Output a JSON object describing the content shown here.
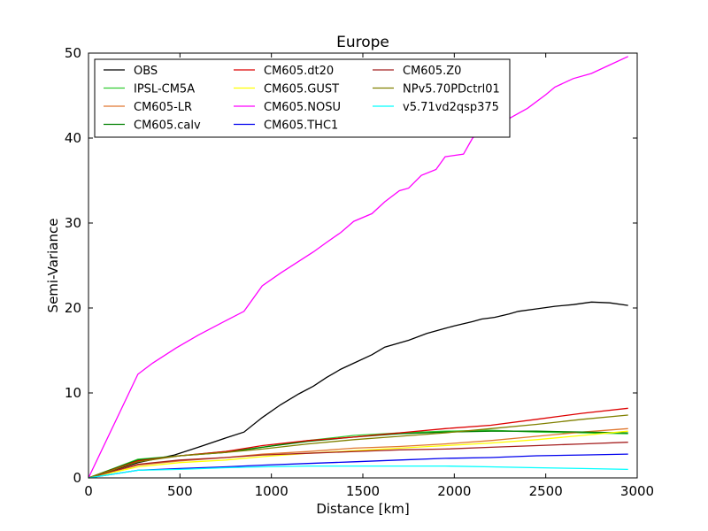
{
  "chart_data": {
    "type": "line",
    "title": "Europe",
    "xlabel": "Distance [km]",
    "ylabel": "Semi-Variance",
    "xlim": [
      0,
      3000
    ],
    "ylim": [
      0,
      50
    ],
    "xticks": [
      0,
      500,
      1000,
      1500,
      2000,
      2500,
      3000
    ],
    "yticks": [
      0,
      10,
      20,
      30,
      40,
      50
    ],
    "grid": false,
    "legend": {
      "placement": "top-left",
      "columns": 3
    },
    "series": [
      {
        "name": "OBS",
        "color": "#000000",
        "x": [
          0,
          270,
          470,
          600,
          750,
          850,
          950,
          1050,
          1150,
          1230,
          1300,
          1380,
          1450,
          1550,
          1620,
          1750,
          1850,
          1950,
          2000,
          2100,
          2150,
          2220,
          2300,
          2350,
          2450,
          2550,
          2650,
          2750,
          2850,
          2950
        ],
        "y": [
          0,
          1.8,
          2.7,
          3.6,
          4.7,
          5.4,
          7.1,
          8.6,
          9.9,
          10.8,
          11.8,
          12.8,
          13.5,
          14.5,
          15.4,
          16.2,
          17.0,
          17.6,
          17.9,
          18.4,
          18.7,
          18.9,
          19.3,
          19.6,
          19.9,
          20.2,
          20.4,
          20.7,
          20.6,
          20.3
        ]
      },
      {
        "name": "IPSL-CM5A",
        "color": "#33cc33",
        "x": [
          0,
          270,
          500,
          750,
          950,
          1200,
          1450,
          1700,
          1950,
          2200,
          2450,
          2700,
          2950
        ],
        "y": [
          0,
          2.2,
          2.6,
          3.1,
          3.6,
          4.4,
          5.0,
          5.3,
          5.5,
          5.6,
          5.4,
          5.3,
          5.2
        ]
      },
      {
        "name": "CM605-LR",
        "color": "#e07830",
        "x": [
          0,
          270,
          500,
          750,
          950,
          1200,
          1450,
          1700,
          1950,
          2200,
          2450,
          2700,
          2950
        ],
        "y": [
          0,
          1.5,
          2.0,
          2.4,
          2.8,
          3.1,
          3.5,
          3.7,
          4.0,
          4.4,
          4.9,
          5.4,
          5.8
        ]
      },
      {
        "name": "CM605.calv",
        "color": "#008000",
        "x": [
          0,
          270,
          500,
          750,
          950,
          1200,
          1450,
          1700,
          1950,
          2200,
          2450,
          2700,
          2950
        ],
        "y": [
          0,
          2.1,
          2.6,
          3.0,
          3.6,
          4.3,
          4.8,
          5.2,
          5.4,
          5.5,
          5.5,
          5.4,
          5.3
        ]
      },
      {
        "name": "CM605.dt20",
        "color": "#dd0000",
        "x": [
          0,
          270,
          500,
          750,
          950,
          1200,
          1450,
          1700,
          1950,
          2200,
          2450,
          2700,
          2950
        ],
        "y": [
          0,
          2.0,
          2.6,
          3.1,
          3.8,
          4.4,
          4.8,
          5.3,
          5.8,
          6.2,
          6.9,
          7.6,
          8.2
        ]
      },
      {
        "name": "CM605.GUST",
        "color": "#ffff00",
        "x": [
          0,
          270,
          500,
          750,
          950,
          1200,
          1450,
          1700,
          1950,
          2200,
          2450,
          2700,
          2950
        ],
        "y": [
          0,
          1.3,
          1.8,
          2.1,
          2.5,
          2.9,
          3.2,
          3.5,
          3.8,
          4.1,
          4.5,
          5.0,
          5.5
        ]
      },
      {
        "name": "CM605.NOSU",
        "color": "#ff00ff",
        "x": [
          0,
          270,
          350,
          480,
          600,
          750,
          850,
          950,
          1050,
          1150,
          1230,
          1300,
          1380,
          1450,
          1550,
          1620,
          1700,
          1750,
          1820,
          1900,
          1950,
          2050,
          2100,
          2150,
          2220,
          2300,
          2400,
          2500,
          2550,
          2650,
          2750,
          2850,
          2950
        ],
        "y": [
          0,
          12.2,
          13.5,
          15.3,
          16.8,
          18.5,
          19.6,
          22.6,
          24.1,
          25.5,
          26.6,
          27.7,
          28.9,
          30.2,
          31.1,
          32.5,
          33.8,
          34.1,
          35.6,
          36.3,
          37.8,
          38.1,
          40.0,
          40.8,
          41.5,
          42.3,
          43.5,
          45.1,
          46.0,
          47.0,
          47.6,
          48.6,
          49.6
        ]
      },
      {
        "name": "CM605.THC1",
        "color": "#0000ee",
        "x": [
          0,
          270,
          500,
          750,
          950,
          1200,
          1450,
          1700,
          1950,
          2200,
          2450,
          2700,
          2950
        ],
        "y": [
          0,
          0.9,
          1.1,
          1.3,
          1.5,
          1.7,
          1.9,
          2.1,
          2.3,
          2.4,
          2.6,
          2.7,
          2.8
        ]
      },
      {
        "name": "CM605.Z0",
        "color": "#a52020",
        "x": [
          0,
          270,
          500,
          750,
          950,
          1200,
          1450,
          1700,
          1950,
          2200,
          2450,
          2700,
          2950
        ],
        "y": [
          0,
          1.6,
          2.1,
          2.4,
          2.7,
          2.9,
          3.1,
          3.3,
          3.4,
          3.6,
          3.8,
          4.0,
          4.2
        ]
      },
      {
        "name": "NPv5.70PDctrl01",
        "color": "#808000",
        "x": [
          0,
          270,
          500,
          750,
          950,
          1200,
          1450,
          1700,
          1950,
          2200,
          2450,
          2700,
          2950
        ],
        "y": [
          0,
          1.9,
          2.6,
          3.0,
          3.4,
          4.0,
          4.5,
          4.9,
          5.3,
          5.8,
          6.3,
          6.9,
          7.4
        ]
      },
      {
        "name": "v5.71vd2qsp375",
        "color": "#00ffff",
        "x": [
          0,
          270,
          500,
          750,
          950,
          1200,
          1450,
          1700,
          1950,
          2200,
          2450,
          2700,
          2950
        ],
        "y": [
          0,
          0.9,
          1.0,
          1.2,
          1.3,
          1.4,
          1.4,
          1.4,
          1.4,
          1.3,
          1.2,
          1.1,
          1.0
        ]
      }
    ]
  }
}
